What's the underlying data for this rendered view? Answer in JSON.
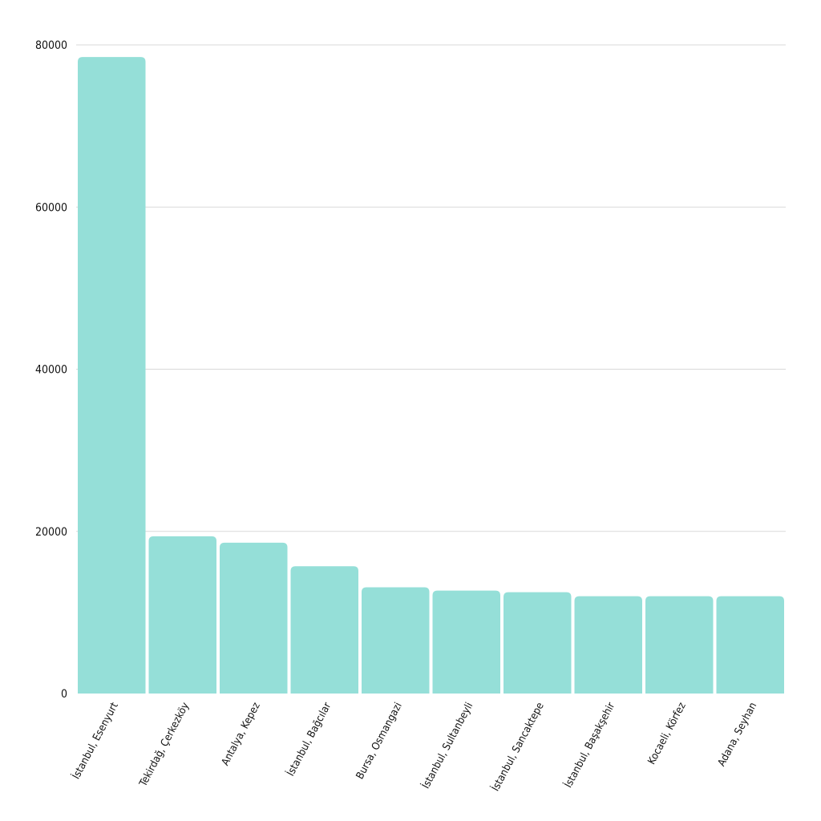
{
  "chart_data": {
    "type": "bar",
    "title": "",
    "xlabel": "",
    "ylabel": "",
    "categories": [
      "İstanbul, Esenyurt",
      "Tekirdağ, Çerkezköy",
      "Antalya, Kepez",
      "İstanbul, Bağcılar",
      "Bursa, Osmangazi",
      "İstanbul, Sultanbeyli",
      "İstanbul, Sancaktepe",
      "İstanbul, Başakşehir",
      "Kocaeli, Körfez",
      "Adana, Seyhan"
    ],
    "values": [
      78500,
      19400,
      18600,
      15700,
      13100,
      12700,
      12500,
      12000,
      12000,
      12000
    ],
    "ylim": [
      0,
      80000
    ],
    "yticks": [
      0,
      20000,
      40000,
      60000,
      80000
    ],
    "grid": true,
    "bar_color": "#95dfd8",
    "grid_color": "#d9d9d9"
  }
}
